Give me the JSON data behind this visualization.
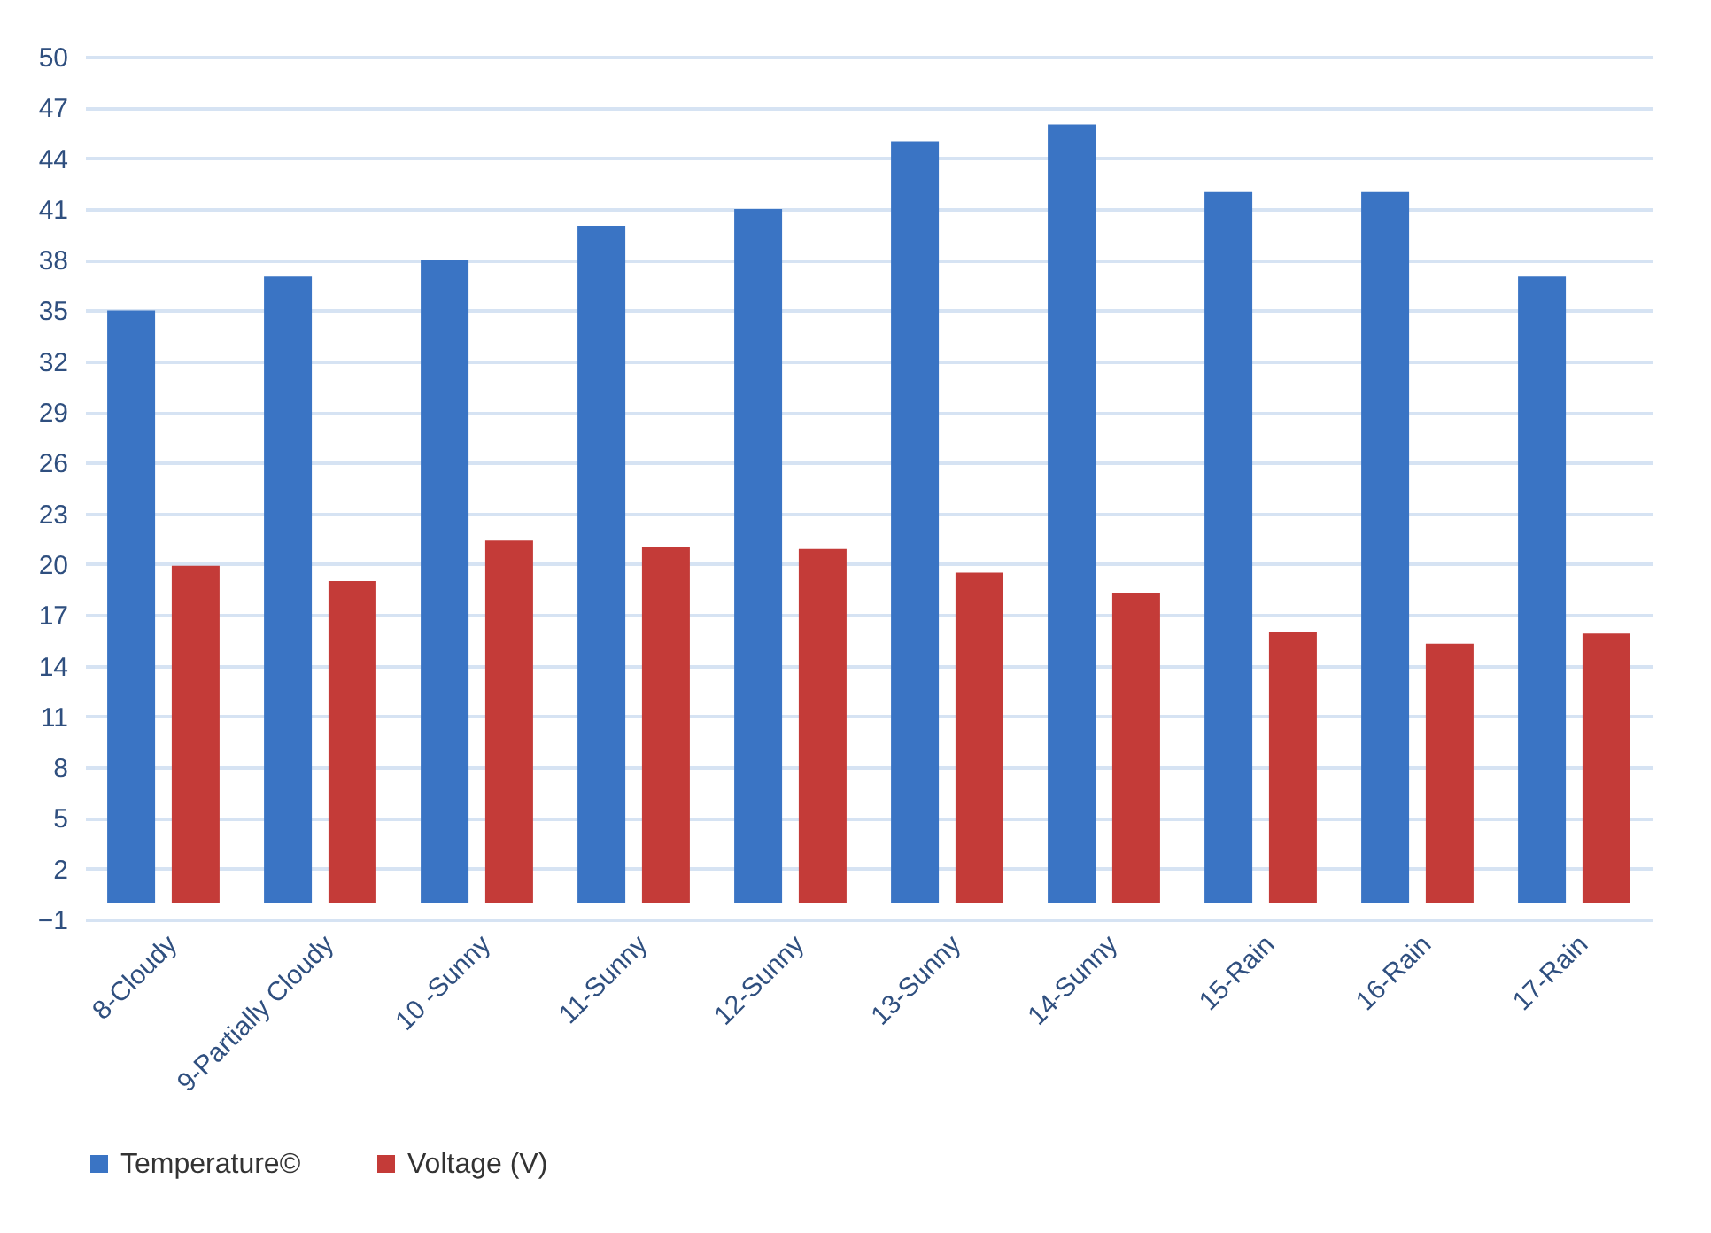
{
  "chart_data": {
    "type": "bar",
    "categories": [
      "8-Cloudy",
      "9-Partially Cloudy",
      "10 -Sunny",
      "11-Sunny",
      "12-Sunny",
      "13-Sunny",
      "14-Sunny",
      "15-Rain",
      "16-Rain",
      "17-Rain"
    ],
    "series": [
      {
        "name": "Temperature©",
        "color": "#3a74c4",
        "values": [
          35,
          37,
          38,
          40,
          41,
          45,
          46,
          42,
          42,
          37
        ]
      },
      {
        "name": "Voltage (V)",
        "color": "#c43b38",
        "values": [
          19.9,
          19,
          21.4,
          21,
          20.9,
          19.5,
          18.3,
          16,
          15.3,
          15.9
        ]
      }
    ],
    "ylim": [
      -1,
      50
    ],
    "yticks": [
      -1,
      2,
      5,
      8,
      11,
      14,
      17,
      20,
      23,
      26,
      29,
      32,
      35,
      38,
      41,
      44,
      47,
      50
    ],
    "grid": "y",
    "legend": "bottom"
  }
}
